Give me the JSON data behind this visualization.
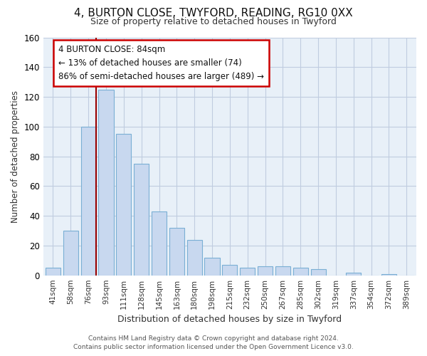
{
  "title": "4, BURTON CLOSE, TWYFORD, READING, RG10 0XX",
  "subtitle": "Size of property relative to detached houses in Twyford",
  "xlabel": "Distribution of detached houses by size in Twyford",
  "ylabel": "Number of detached properties",
  "bar_labels": [
    "41sqm",
    "58sqm",
    "76sqm",
    "93sqm",
    "111sqm",
    "128sqm",
    "145sqm",
    "163sqm",
    "180sqm",
    "198sqm",
    "215sqm",
    "232sqm",
    "250sqm",
    "267sqm",
    "285sqm",
    "302sqm",
    "319sqm",
    "337sqm",
    "354sqm",
    "372sqm",
    "389sqm"
  ],
  "bar_values": [
    5,
    30,
    100,
    125,
    95,
    75,
    43,
    32,
    24,
    12,
    7,
    5,
    6,
    6,
    5,
    4,
    0,
    2,
    0,
    1,
    0
  ],
  "bar_color": "#c8d8ef",
  "bar_edge_color": "#7aafd4",
  "vline_color": "#990000",
  "ylim": [
    0,
    160
  ],
  "yticks": [
    0,
    20,
    40,
    60,
    80,
    100,
    120,
    140,
    160
  ],
  "annotation_title": "4 BURTON CLOSE: 84sqm",
  "annotation_line1": "← 13% of detached houses are smaller (74)",
  "annotation_line2": "86% of semi-detached houses are larger (489) →",
  "annotation_box_color": "#ffffff",
  "annotation_box_edge": "#cc0000",
  "footer1": "Contains HM Land Registry data © Crown copyright and database right 2024.",
  "footer2": "Contains public sector information licensed under the Open Government Licence v3.0.",
  "background_color": "#ffffff",
  "plot_bg_color": "#e8f0f8",
  "grid_color": "#c0cce0"
}
